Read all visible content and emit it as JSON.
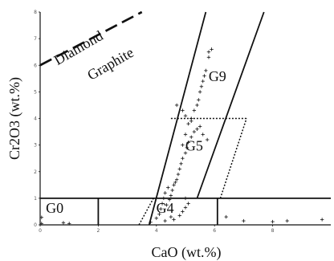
{
  "chart_data": {
    "type": "scatter",
    "title": "",
    "xlabel": "CaO (wt.%)",
    "ylabel": "Cr2O3 (wt.%)",
    "xlim": [
      0,
      10
    ],
    "ylim": [
      0,
      8
    ],
    "x_ticks": [
      0,
      2,
      4,
      6,
      8
    ],
    "y_ticks": [
      0,
      1,
      2,
      3,
      4,
      5,
      6,
      7,
      8
    ],
    "grid": false,
    "legend": "none",
    "colors": {
      "axis": "#111111",
      "boundary": "#111111",
      "marker": "#111111",
      "tick_label": "#555555"
    },
    "regions": [
      {
        "label": "G0",
        "x": 0.5,
        "y": 0.45
      },
      {
        "label": "G4",
        "x": 4.3,
        "y": 0.45
      },
      {
        "label": "G5",
        "x": 5.3,
        "y": 2.8
      },
      {
        "label": "G9",
        "x": 6.1,
        "y": 5.4
      }
    ],
    "boundary_labels": [
      {
        "label": "Diamond",
        "x": 1.4,
        "y": 6.5,
        "rotation": -30
      },
      {
        "label": "Graphite",
        "x": 2.5,
        "y": 5.9,
        "rotation": -30
      }
    ],
    "boundaries": {
      "diamond_graphite": [
        [
          0,
          6.0
        ],
        [
          3.5,
          8.0
        ]
      ],
      "g0_floor": [
        [
          0,
          1.0
        ],
        [
          10,
          1.0
        ]
      ],
      "g0_right": [
        [
          2.0,
          0.0
        ],
        [
          2.0,
          1.0
        ]
      ],
      "g4_right": [
        [
          6.1,
          0.0
        ],
        [
          6.1,
          1.0
        ]
      ],
      "g9_left": [
        [
          3.75,
          0.0
        ],
        [
          5.7,
          8.0
        ]
      ],
      "g9_right": [
        [
          5.4,
          1.0
        ],
        [
          7.7,
          8.0
        ]
      ],
      "g5_top": [
        [
          4.5,
          4.0
        ],
        [
          7.1,
          4.0
        ]
      ],
      "g5_left": [
        [
          3.4,
          0.0
        ],
        [
          3.9,
          1.0
        ]
      ],
      "g5_right": [
        [
          6.2,
          1.0
        ],
        [
          7.1,
          4.0
        ]
      ]
    },
    "points": [
      [
        0.05,
        0.05
      ],
      [
        0.05,
        0.28
      ],
      [
        0.8,
        0.08
      ],
      [
        1.0,
        0.05
      ],
      [
        3.8,
        0.1
      ],
      [
        4.0,
        0.25
      ],
      [
        4.1,
        0.4
      ],
      [
        4.15,
        0.6
      ],
      [
        4.2,
        0.8
      ],
      [
        4.25,
        1.0
      ],
      [
        4.3,
        1.2
      ],
      [
        4.4,
        1.4
      ],
      [
        4.35,
        0.75
      ],
      [
        4.45,
        0.95
      ],
      [
        4.5,
        1.1
      ],
      [
        4.55,
        1.3
      ],
      [
        4.6,
        1.5
      ],
      [
        4.7,
        1.7
      ],
      [
        4.75,
        1.9
      ],
      [
        4.8,
        2.1
      ],
      [
        4.65,
        1.6
      ],
      [
        4.85,
        2.3
      ],
      [
        4.9,
        2.5
      ],
      [
        5.0,
        2.7
      ],
      [
        5.05,
        2.9
      ],
      [
        5.1,
        3.1
      ],
      [
        5.2,
        3.3
      ],
      [
        5.3,
        3.5
      ],
      [
        5.4,
        3.6
      ],
      [
        5.5,
        3.7
      ],
      [
        4.9,
        3.0
      ],
      [
        5.0,
        3.4
      ],
      [
        5.1,
        3.8
      ],
      [
        5.2,
        4.0
      ],
      [
        5.3,
        4.3
      ],
      [
        5.4,
        4.5
      ],
      [
        5.45,
        4.7
      ],
      [
        5.5,
        5.0
      ],
      [
        5.55,
        5.2
      ],
      [
        5.6,
        5.4
      ],
      [
        5.65,
        5.6
      ],
      [
        5.7,
        5.8
      ],
      [
        5.8,
        6.3
      ],
      [
        5.9,
        6.6
      ],
      [
        5.8,
        6.5
      ],
      [
        4.7,
        4.5
      ],
      [
        4.9,
        4.3
      ],
      [
        5.0,
        4.1
      ],
      [
        5.2,
        3.9
      ],
      [
        5.6,
        3.4
      ],
      [
        5.75,
        3.2
      ],
      [
        4.3,
        0.15
      ],
      [
        4.5,
        0.3
      ],
      [
        4.6,
        0.2
      ],
      [
        4.8,
        0.35
      ],
      [
        4.9,
        0.5
      ],
      [
        5.0,
        0.65
      ],
      [
        5.1,
        0.8
      ],
      [
        5.0,
        1.0
      ],
      [
        6.4,
        0.3
      ],
      [
        7.0,
        0.15
      ],
      [
        8.0,
        0.12
      ],
      [
        8.5,
        0.15
      ],
      [
        9.7,
        0.2
      ]
    ]
  }
}
